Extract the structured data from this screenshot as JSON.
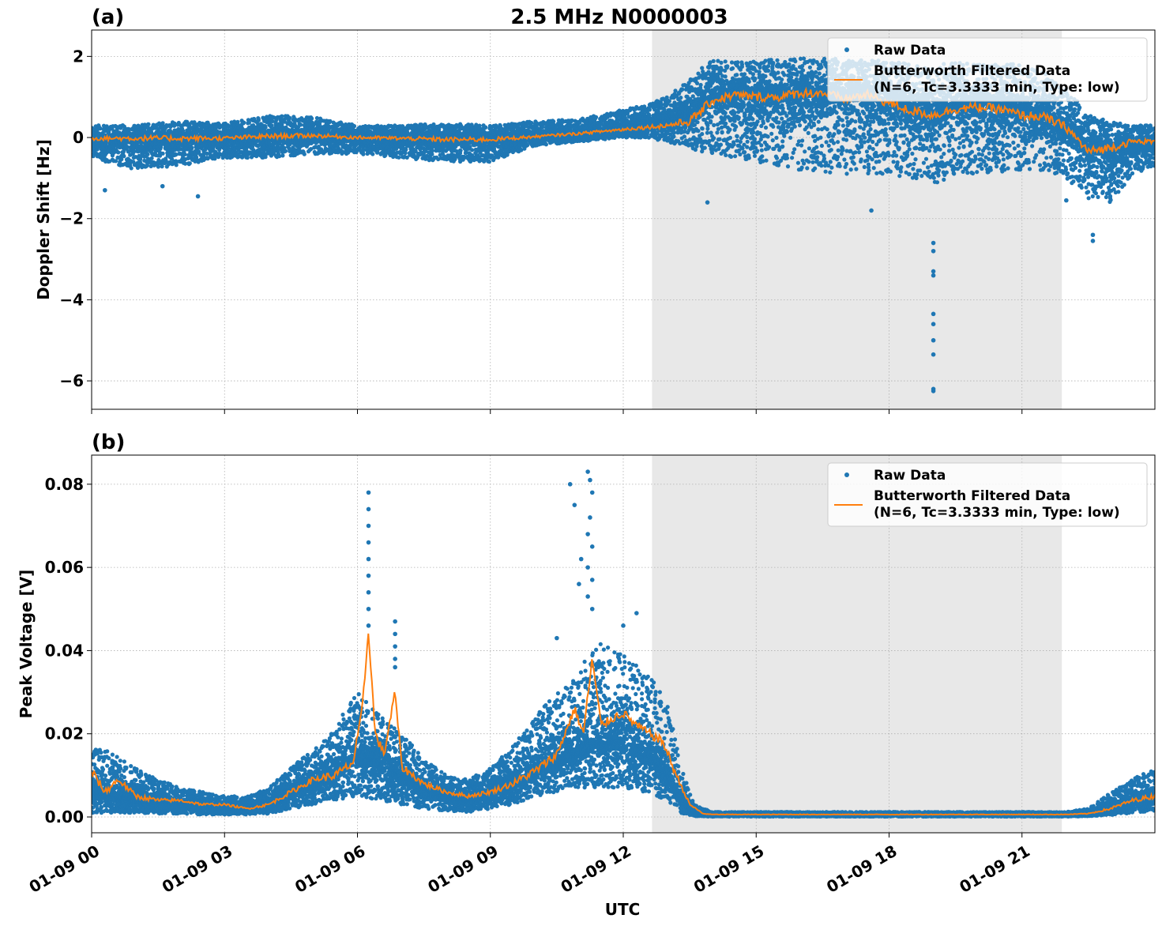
{
  "figure_title": "2.5 MHz N0000003",
  "xlabel": "UTC",
  "colors": {
    "raw": "#1f77b4",
    "filtered": "#ff7f0e",
    "shade": "#e8e8e8",
    "grid": "#b0b0b0"
  },
  "chart_data": [
    {
      "type": "scatter",
      "panel_label": "(a)",
      "ylabel": "Doppler Shift [Hz]",
      "xlim": [
        0,
        24
      ],
      "x_unit": "hours UTC on 01-09",
      "ylim": [
        -6.7,
        2.65
      ],
      "yticks": [
        2,
        0,
        -2,
        -4,
        -6
      ],
      "ytick_labels": [
        "2",
        "0",
        "−2",
        "−4",
        "−6"
      ],
      "xticks": [
        0,
        3,
        6,
        9,
        12,
        15,
        18,
        21
      ],
      "shaded_region": [
        12.65,
        21.9
      ],
      "grid": true,
      "legend_placement": "upper-right",
      "legend": [
        "Raw Data",
        "Butterworth Filtered Data",
        "(N=6, Tc=3.3333 min, Type: low)"
      ],
      "series": [
        {
          "name": "Raw Data",
          "kind": "scatter",
          "x": [
            0,
            1,
            2,
            3,
            4,
            5,
            6,
            7,
            8,
            9,
            10,
            11,
            12,
            12.5,
            13,
            13.5,
            14,
            15,
            16,
            17,
            18,
            18.5,
            19,
            19.5,
            20,
            21,
            21.5,
            22,
            22.5,
            23,
            23.5,
            24
          ],
          "center": [
            -0.05,
            -0.05,
            -0.05,
            -0.02,
            0.05,
            0.05,
            0.0,
            -0.02,
            -0.03,
            -0.02,
            0.05,
            0.08,
            0.2,
            0.3,
            0.4,
            0.6,
            1.0,
            1.0,
            1.05,
            1.05,
            0.9,
            0.7,
            0.6,
            0.8,
            0.8,
            0.7,
            0.5,
            0.2,
            -0.3,
            -0.4,
            -0.2,
            -0.15
          ],
          "upper": [
            0.3,
            0.3,
            0.4,
            0.35,
            0.55,
            0.5,
            0.3,
            0.3,
            0.35,
            0.3,
            0.4,
            0.45,
            0.7,
            0.8,
            1.0,
            1.5,
            1.9,
            1.9,
            1.95,
            1.95,
            1.9,
            1.8,
            1.8,
            1.85,
            1.85,
            1.8,
            1.6,
            1.2,
            0.6,
            0.4,
            0.3,
            0.3
          ],
          "lower": [
            -0.5,
            -0.8,
            -0.7,
            -0.5,
            -0.5,
            -0.4,
            -0.4,
            -0.5,
            -0.6,
            -0.6,
            -0.2,
            -0.1,
            0.0,
            0.0,
            -0.1,
            -0.3,
            -0.4,
            -0.6,
            -0.8,
            -0.9,
            -0.9,
            -1.0,
            -1.2,
            -0.9,
            -0.9,
            -0.8,
            -0.8,
            -1.0,
            -1.5,
            -1.6,
            -0.9,
            -0.7
          ],
          "outliers": [
            [
              0.3,
              -1.3
            ],
            [
              1.6,
              -1.2
            ],
            [
              2.4,
              -1.45
            ],
            [
              13.9,
              -1.6
            ],
            [
              17.6,
              -1.8
            ],
            [
              19.0,
              -2.6
            ],
            [
              19.0,
              -2.8
            ],
            [
              19.0,
              -3.3
            ],
            [
              19.0,
              -3.4
            ],
            [
              19.0,
              -4.35
            ],
            [
              19.0,
              -4.6
            ],
            [
              19.0,
              -5.0
            ],
            [
              19.0,
              -5.35
            ],
            [
              19.0,
              -6.2
            ],
            [
              19.0,
              -6.25
            ],
            [
              22.6,
              -2.4
            ],
            [
              22.6,
              -2.55
            ],
            [
              22.0,
              -1.55
            ]
          ]
        },
        {
          "name": "Butterworth Filtered Data",
          "kind": "line",
          "x": [
            0,
            1,
            2,
            3,
            4,
            5,
            6,
            7,
            8,
            9,
            10,
            11,
            12,
            12.5,
            13,
            13.5,
            14,
            14.5,
            15,
            15.5,
            16,
            16.5,
            17,
            17.5,
            18,
            18.5,
            19,
            19.5,
            20,
            20.5,
            21,
            21.5,
            22,
            22.5,
            23,
            23.5,
            24
          ],
          "y": [
            -0.02,
            -0.02,
            -0.02,
            -0.02,
            0.03,
            0.05,
            0.0,
            -0.02,
            -0.05,
            -0.05,
            0.02,
            0.1,
            0.2,
            0.25,
            0.3,
            0.4,
            0.9,
            1.05,
            1.0,
            1.0,
            1.1,
            1.1,
            0.95,
            1.05,
            0.85,
            0.65,
            0.55,
            0.7,
            0.75,
            0.7,
            0.55,
            0.5,
            0.25,
            -0.35,
            -0.25,
            -0.1,
            -0.1
          ]
        }
      ]
    },
    {
      "type": "scatter",
      "panel_label": "(b)",
      "ylabel": "Peak Voltage [V]",
      "xlim": [
        0,
        24
      ],
      "x_unit": "hours UTC on 01-09",
      "ylim": [
        -0.0038,
        0.087
      ],
      "yticks": [
        0,
        0.02,
        0.04,
        0.06,
        0.08
      ],
      "ytick_labels": [
        "0.00",
        "0.02",
        "0.04",
        "0.06",
        "0.08"
      ],
      "xticks": [
        0,
        3,
        6,
        9,
        12,
        15,
        18,
        21
      ],
      "xtick_labels": [
        "01-09 00",
        "01-09 03",
        "01-09 06",
        "01-09 09",
        "01-09 12",
        "01-09 15",
        "01-09 18",
        "01-09 21"
      ],
      "shaded_region": [
        12.65,
        21.9
      ],
      "grid": true,
      "legend_placement": "upper-right",
      "legend": [
        "Raw Data",
        "Butterworth Filtered Data",
        "(N=6, Tc=3.3333 min, Type: low)"
      ],
      "series": [
        {
          "name": "Raw Data",
          "kind": "scatter",
          "x": [
            0,
            0.5,
            1,
            1.5,
            2,
            2.5,
            3,
            3.5,
            4,
            4.5,
            5,
            5.5,
            6,
            6.5,
            7,
            7.5,
            8,
            8.5,
            9,
            9.5,
            10,
            10.5,
            11,
            11.5,
            12,
            12.5,
            13,
            13.3,
            13.6,
            14,
            15,
            16,
            17,
            18,
            19,
            20,
            21,
            22,
            22.5,
            23,
            23.5,
            24
          ],
          "center": [
            0.006,
            0.005,
            0.004,
            0.004,
            0.003,
            0.003,
            0.002,
            0.002,
            0.003,
            0.006,
            0.008,
            0.011,
            0.015,
            0.013,
            0.01,
            0.007,
            0.005,
            0.004,
            0.006,
            0.008,
            0.011,
            0.014,
            0.016,
            0.018,
            0.018,
            0.016,
            0.01,
            0.004,
            0.001,
            0.0006,
            0.0006,
            0.0006,
            0.0006,
            0.0006,
            0.0006,
            0.0006,
            0.0006,
            0.0006,
            0.0008,
            0.002,
            0.004,
            0.005
          ],
          "upper": [
            0.018,
            0.015,
            0.012,
            0.009,
            0.007,
            0.006,
            0.005,
            0.005,
            0.007,
            0.012,
            0.016,
            0.022,
            0.03,
            0.025,
            0.02,
            0.014,
            0.01,
            0.009,
            0.012,
            0.017,
            0.024,
            0.03,
            0.036,
            0.042,
            0.04,
            0.035,
            0.028,
            0.012,
            0.003,
            0.0012,
            0.0012,
            0.0012,
            0.0012,
            0.0012,
            0.0012,
            0.0012,
            0.0012,
            0.0012,
            0.002,
            0.006,
            0.009,
            0.012
          ],
          "lower": [
            0.001,
            0.001,
            0.001,
            0.0008,
            0.0008,
            0.0006,
            0.0006,
            0.0006,
            0.0008,
            0.002,
            0.003,
            0.004,
            0.005,
            0.004,
            0.003,
            0.002,
            0.0015,
            0.0012,
            0.002,
            0.003,
            0.005,
            0.006,
            0.007,
            0.007,
            0.007,
            0.006,
            0.004,
            0.001,
            0.0002,
            0.0001,
            0.0001,
            0.0001,
            0.0001,
            0.0001,
            0.0001,
            0.0001,
            0.0001,
            0.0001,
            0.0002,
            0.0005,
            0.001,
            0.0015
          ],
          "outliers": [
            [
              6.25,
              0.078
            ],
            [
              6.25,
              0.074
            ],
            [
              6.25,
              0.07
            ],
            [
              6.25,
              0.066
            ],
            [
              6.25,
              0.062
            ],
            [
              6.25,
              0.058
            ],
            [
              6.25,
              0.054
            ],
            [
              6.25,
              0.05
            ],
            [
              6.25,
              0.046
            ],
            [
              6.85,
              0.047
            ],
            [
              6.85,
              0.044
            ],
            [
              6.85,
              0.041
            ],
            [
              6.85,
              0.038
            ],
            [
              6.85,
              0.036
            ],
            [
              10.8,
              0.08
            ],
            [
              10.9,
              0.075
            ],
            [
              11.2,
              0.083
            ],
            [
              11.25,
              0.081
            ],
            [
              11.3,
              0.078
            ],
            [
              11.25,
              0.072
            ],
            [
              11.2,
              0.068
            ],
            [
              11.3,
              0.065
            ],
            [
              11.2,
              0.06
            ],
            [
              11.3,
              0.057
            ],
            [
              11.2,
              0.053
            ],
            [
              11.3,
              0.05
            ],
            [
              11.05,
              0.062
            ],
            [
              11.0,
              0.056
            ],
            [
              10.5,
              0.043
            ],
            [
              12.3,
              0.049
            ],
            [
              12.0,
              0.046
            ]
          ]
        },
        {
          "name": "Butterworth Filtered Data",
          "kind": "line",
          "x": [
            0,
            0.3,
            0.6,
            1,
            1.5,
            2,
            2.5,
            3,
            3.5,
            4,
            4.5,
            5,
            5.5,
            5.9,
            6.1,
            6.25,
            6.4,
            6.6,
            6.85,
            7.0,
            7.5,
            8,
            8.5,
            9,
            9.5,
            10,
            10.5,
            10.9,
            11.1,
            11.3,
            11.5,
            11.8,
            12,
            12.3,
            12.6,
            12.9,
            13.2,
            13.5,
            13.8,
            14,
            15,
            16,
            17,
            18,
            19,
            20,
            21,
            22,
            22.5,
            23,
            23.5,
            24
          ],
          "y": [
            0.011,
            0.006,
            0.009,
            0.005,
            0.004,
            0.004,
            0.003,
            0.003,
            0.002,
            0.003,
            0.006,
            0.009,
            0.01,
            0.013,
            0.025,
            0.045,
            0.02,
            0.015,
            0.03,
            0.012,
            0.008,
            0.006,
            0.005,
            0.006,
            0.008,
            0.011,
            0.015,
            0.026,
            0.02,
            0.038,
            0.022,
            0.024,
            0.025,
            0.022,
            0.02,
            0.018,
            0.01,
            0.003,
            0.0008,
            0.0006,
            0.0006,
            0.0006,
            0.0006,
            0.0006,
            0.0006,
            0.0006,
            0.0006,
            0.0006,
            0.0008,
            0.002,
            0.004,
            0.005
          ]
        }
      ]
    }
  ]
}
